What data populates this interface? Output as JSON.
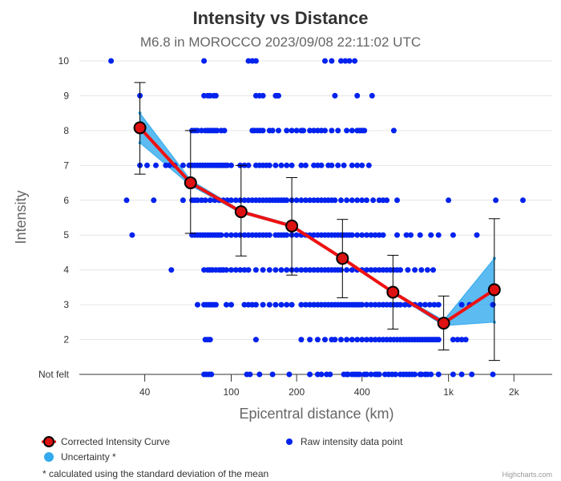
{
  "chart_data": {
    "type": "scatter+line",
    "title": "Intensity vs Distance",
    "subtitle": "M6.8 in MOROCCO 2023/09/08 22:11:02 UTC",
    "xlabel": "Epicentral distance (km)",
    "ylabel": "Intensity",
    "x_scale": "log",
    "xlim": [
      20,
      3000
    ],
    "ylim": [
      1,
      10
    ],
    "x_ticks": [
      {
        "value": 40,
        "label": "40"
      },
      {
        "value": 100,
        "label": "100"
      },
      {
        "value": 200,
        "label": "200"
      },
      {
        "value": 400,
        "label": "400"
      },
      {
        "value": 1000,
        "label": "1k"
      },
      {
        "value": 2000,
        "label": "2k"
      }
    ],
    "y_ticks": [
      {
        "value": 1,
        "label": "Not felt"
      },
      {
        "value": 2,
        "label": "2"
      },
      {
        "value": 3,
        "label": "3"
      },
      {
        "value": 4,
        "label": "4"
      },
      {
        "value": 5,
        "label": "5"
      },
      {
        "value": 6,
        "label": "6"
      },
      {
        "value": 7,
        "label": "7"
      },
      {
        "value": 8,
        "label": "8"
      },
      {
        "value": 9,
        "label": "9"
      },
      {
        "value": 10,
        "label": "10"
      }
    ],
    "series": [
      {
        "name": "Corrected Intensity Curve",
        "type": "line",
        "color": "#ee1111",
        "marker_fill": "#dd1111",
        "points": [
          {
            "x": 38,
            "y": 8.08,
            "low": 6.75,
            "high": 9.38
          },
          {
            "x": 65,
            "y": 6.5,
            "low": 5.05,
            "high": 8.0
          },
          {
            "x": 111,
            "y": 5.67,
            "low": 4.4,
            "high": 7.0
          },
          {
            "x": 190,
            "y": 5.26,
            "low": 3.85,
            "high": 6.65
          },
          {
            "x": 325,
            "y": 4.33,
            "low": 3.2,
            "high": 5.45
          },
          {
            "x": 555,
            "y": 3.36,
            "low": 2.3,
            "high": 4.42
          },
          {
            "x": 950,
            "y": 2.47,
            "low": 1.7,
            "high": 3.25
          },
          {
            "x": 1625,
            "y": 3.43,
            "low": 1.4,
            "high": 5.47
          }
        ]
      },
      {
        "name": "Uncertainty *",
        "type": "arearange",
        "color": "#33aaee",
        "points": [
          {
            "x": 38,
            "low": 7.65,
            "high": 8.5
          },
          {
            "x": 65,
            "low": 6.42,
            "high": 6.58
          },
          {
            "x": 111,
            "low": 5.63,
            "high": 5.71
          },
          {
            "x": 190,
            "low": 5.23,
            "high": 5.3
          },
          {
            "x": 325,
            "low": 4.3,
            "high": 4.36
          },
          {
            "x": 555,
            "low": 3.33,
            "high": 3.39
          },
          {
            "x": 950,
            "low": 2.4,
            "high": 2.55
          },
          {
            "x": 1625,
            "low": 2.5,
            "high": 4.33
          }
        ]
      },
      {
        "name": "Raw intensity data point",
        "type": "scatter",
        "color": "#0022ee",
        "rows": [
          {
            "y": 10,
            "x": [
              28,
              75,
              120,
              125,
              130,
              270,
              290,
              320,
              335,
              350,
              370
            ]
          },
          {
            "y": 9,
            "x": [
              38,
              75,
              78,
              80,
              83,
              85,
              130,
              135,
              140,
              160,
              162,
              165,
              300,
              380,
              445
            ]
          },
          {
            "y": 8,
            "x": [
              66,
              68,
              70,
              73,
              76,
              78,
              80,
              82,
              84,
              86,
              90,
              93,
              125,
              128,
              132,
              136,
              140,
              150,
              155,
              165,
              180,
              190,
              200,
              210,
              215,
              230,
              240,
              250,
              260,
              270,
              290,
              310,
              340,
              360,
              380,
              390,
              400,
              410,
              560
            ]
          },
          {
            "y": 7,
            "x": [
              38,
              41,
              45,
              50,
              52,
              55,
              60,
              64,
              66,
              68,
              70,
              72,
              74,
              76,
              78,
              80,
              82,
              84,
              86,
              88,
              90,
              92,
              94,
              96,
              100,
              110,
              115,
              120,
              130,
              135,
              140,
              145,
              150,
              160,
              170,
              180,
              190,
              210,
              220,
              240,
              250,
              260,
              280,
              290,
              310,
              330,
              360,
              380,
              400,
              430
            ]
          },
          {
            "y": 6,
            "x": [
              33,
              44,
              60,
              66,
              68,
              70,
              73,
              76,
              80,
              84,
              88,
              92,
              96,
              100,
              105,
              110,
              115,
              120,
              125,
              130,
              135,
              140,
              145,
              150,
              155,
              160,
              165,
              170,
              175,
              180,
              190,
              200,
              210,
              220,
              230,
              240,
              250,
              260,
              270,
              280,
              290,
              300,
              320,
              340,
              360,
              380,
              400,
              420,
              450,
              480,
              500,
              520,
              580,
              1000,
              1650,
              2200
            ]
          },
          {
            "y": 5,
            "x": [
              35,
              66,
              68,
              70,
              72,
              74,
              76,
              78,
              80,
              82,
              84,
              86,
              88,
              90,
              95,
              100,
              105,
              110,
              115,
              120,
              125,
              130,
              135,
              140,
              145,
              150,
              160,
              165,
              170,
              175,
              180,
              190,
              200,
              210,
              220,
              230,
              240,
              250,
              260,
              270,
              280,
              290,
              300,
              310,
              320,
              330,
              340,
              350,
              360,
              380,
              400,
              420,
              440,
              460,
              480,
              500,
              580,
              640,
              670,
              740,
              830,
              900,
              1050,
              1350
            ]
          },
          {
            "y": 4,
            "x": [
              53,
              75,
              78,
              80,
              82,
              85,
              88,
              90,
              92,
              95,
              100,
              105,
              110,
              115,
              120,
              130,
              140,
              150,
              160,
              170,
              180,
              190,
              200,
              210,
              220,
              230,
              240,
              250,
              260,
              270,
              280,
              290,
              300,
              310,
              320,
              340,
              360,
              380,
              400,
              420,
              440,
              460,
              480,
              500,
              520,
              540,
              560,
              580,
              600,
              650,
              700,
              750,
              800,
              850
            ]
          },
          {
            "y": 3,
            "x": [
              70,
              75,
              77,
              79,
              81,
              83,
              85,
              95,
              100,
              115,
              120,
              125,
              130,
              140,
              150,
              160,
              170,
              180,
              190,
              210,
              220,
              230,
              240,
              250,
              260,
              270,
              280,
              290,
              300,
              310,
              320,
              330,
              340,
              350,
              360,
              370,
              380,
              390,
              400,
              420,
              440,
              460,
              480,
              500,
              520,
              540,
              560,
              580,
              600,
              630,
              660,
              700,
              740,
              780,
              820,
              860,
              900,
              1150,
              1250,
              1600
            ]
          },
          {
            "y": 2,
            "x": [
              76,
              78,
              80,
              130,
              210,
              230,
              250,
              270,
              290,
              300,
              320,
              340,
              360,
              380,
              400,
              420,
              440,
              460,
              480,
              500,
              520,
              540,
              560,
              580,
              600,
              620,
              640,
              660,
              680,
              700,
              720,
              740,
              760,
              780,
              800,
              820,
              840,
              860,
              880,
              900,
              1050,
              1100,
              1150,
              1200
            ]
          },
          {
            "y": 1,
            "x": [
              75,
              77,
              79,
              81,
              118,
              122,
              135,
              155,
              185,
              230,
              250,
              260,
              275,
              285,
              330,
              340,
              345,
              360,
              370,
              380,
              390,
              410,
              420,
              440,
              460,
              470,
              480,
              510,
              530,
              550,
              570,
              600,
              620,
              640,
              660,
              680,
              700,
              740,
              750,
              780,
              800,
              830,
              900,
              1050,
              1150,
              1280,
              1600
            ]
          }
        ]
      }
    ],
    "legend": {
      "placement": "bottom",
      "items": [
        "Corrected Intensity Curve",
        "Raw intensity data point",
        "Uncertainty *"
      ]
    },
    "footnote": "* calculated using the standard deviation of the mean"
  },
  "credits": "Highcharts.com"
}
